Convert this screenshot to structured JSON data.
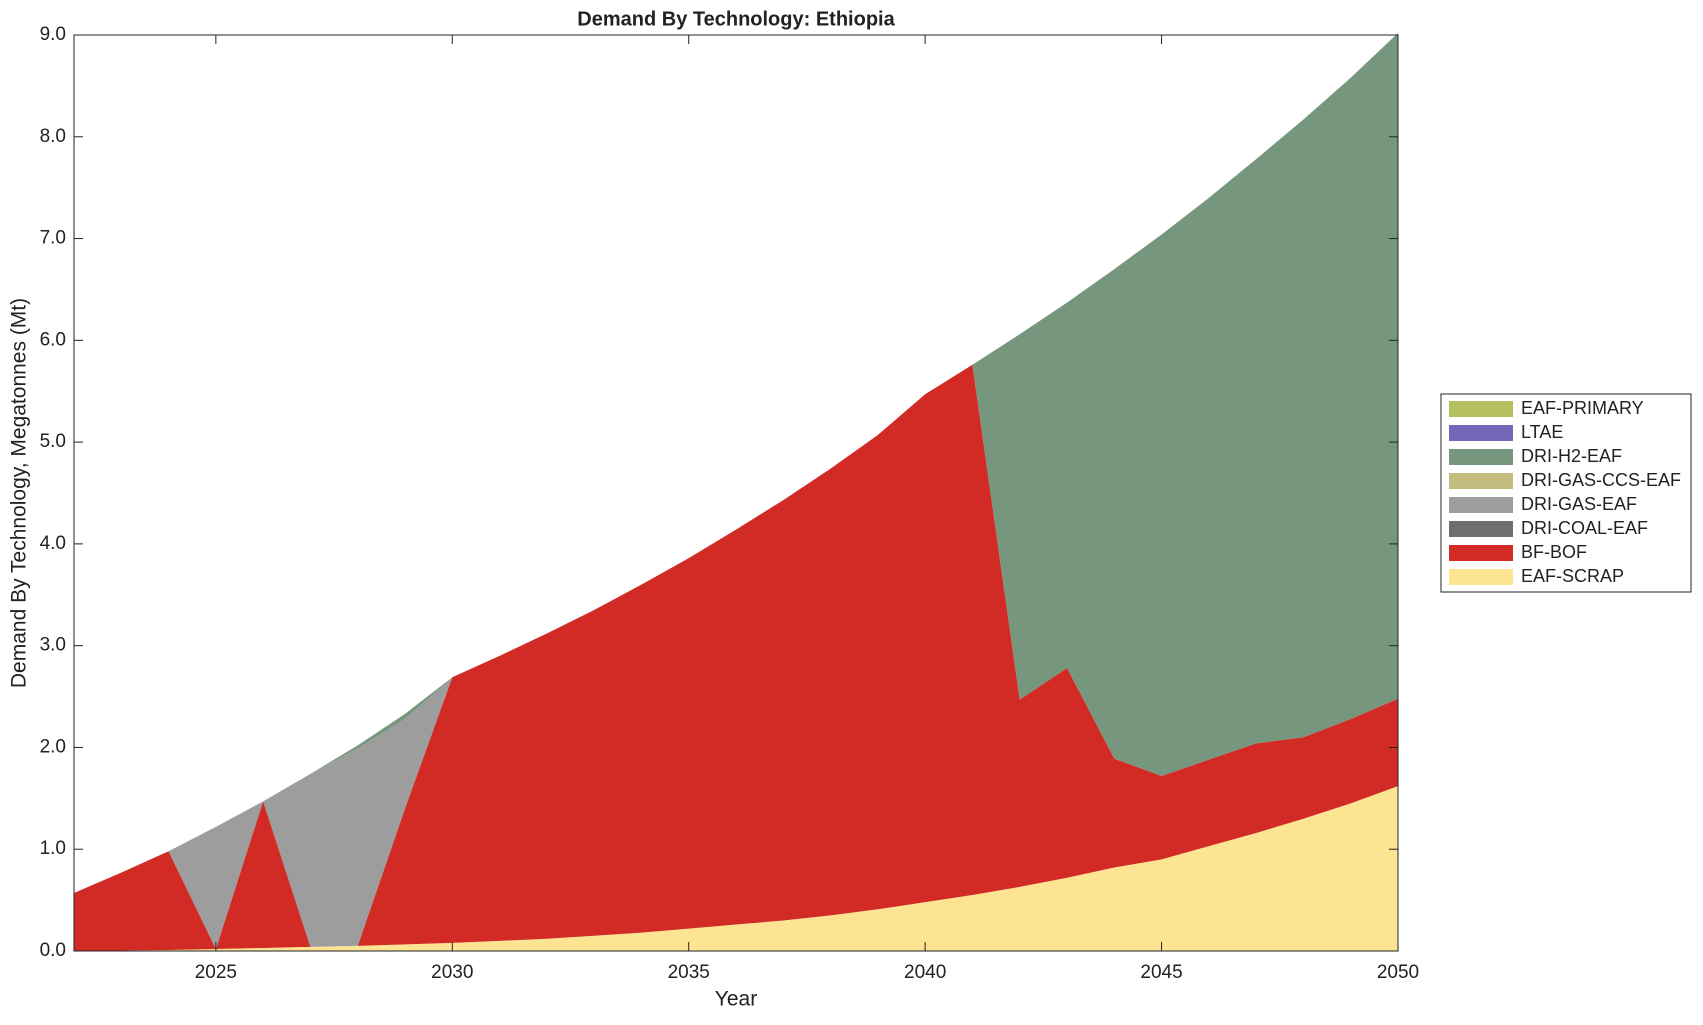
{
  "chart_data": {
    "type": "stacked_area",
    "title": "Demand By Technology: Ethiopia",
    "x_label": "Year",
    "y_label": "Demand By Technology, Megatonnes (Mt)",
    "x": [
      2022,
      2023,
      2024,
      2025,
      2026,
      2027,
      2028,
      2029,
      2030,
      2031,
      2032,
      2033,
      2034,
      2035,
      2036,
      2037,
      2038,
      2039,
      2040,
      2041,
      2042,
      2043,
      2044,
      2045,
      2046,
      2047,
      2048,
      2049,
      2050
    ],
    "series": [
      {
        "name": "EAF-PRIMARY",
        "color": "#b5bf5f",
        "values": [
          0,
          0,
          0,
          0,
          0,
          0,
          0,
          0,
          0,
          0,
          0,
          0,
          0,
          0,
          0,
          0,
          0,
          0,
          0,
          0,
          0,
          0,
          0,
          0,
          0,
          0,
          0,
          0,
          0
        ]
      },
      {
        "name": "LTAE",
        "color": "#7466b8",
        "values": [
          0,
          0,
          0,
          0,
          0,
          0,
          0,
          0,
          0,
          0,
          0,
          0,
          0,
          0,
          0,
          0,
          0,
          0,
          0,
          0,
          0,
          0,
          0,
          0,
          0,
          0,
          0,
          0,
          0
        ]
      },
      {
        "name": "DRI-H2-EAF",
        "color": "#76977d",
        "values": [
          0,
          0,
          0,
          0,
          0,
          0,
          0.03,
          0.05,
          0,
          0,
          0,
          0,
          0,
          0,
          0,
          0,
          0,
          0,
          0,
          0,
          3.59,
          3.59,
          4.81,
          5.32,
          5.52,
          5.74,
          6.07,
          6.3,
          6.54
        ]
      },
      {
        "name": "DRI-GAS-CCS-EAF",
        "color": "#c4bb7e",
        "values": [
          0,
          0,
          0,
          0,
          0,
          0,
          0,
          0,
          0,
          0,
          0,
          0,
          0,
          0,
          0,
          0,
          0,
          0,
          0,
          0,
          0,
          0,
          0,
          0,
          0,
          0,
          0,
          0,
          0
        ]
      },
      {
        "name": "DRI-GAS-EAF",
        "color": "#9d9d9d",
        "values": [
          0,
          0,
          0,
          1.2,
          0,
          1.7,
          1.94,
          0.88,
          0,
          0,
          0,
          0,
          0,
          0,
          0,
          0,
          0,
          0,
          0,
          0,
          0,
          0,
          0,
          0,
          0,
          0,
          0,
          0,
          0
        ]
      },
      {
        "name": "DRI-COAL-EAF",
        "color": "#6e6e6e",
        "values": [
          0,
          0,
          0,
          0,
          0,
          0,
          0,
          0,
          0,
          0,
          0,
          0,
          0,
          0,
          0,
          0,
          0,
          0,
          0,
          0,
          0,
          0,
          0,
          0,
          0,
          0,
          0,
          0,
          0
        ]
      },
      {
        "name": "BF-BOF",
        "color": "#d22b25",
        "values": [
          0.57,
          0.765,
          0.97,
          0,
          1.44,
          0,
          0,
          1.335,
          2.61,
          2.8,
          3.0,
          3.2,
          3.42,
          3.64,
          3.88,
          4.13,
          4.39,
          4.66,
          4.99,
          5.21,
          1.84,
          2.06,
          1.07,
          0.82,
          0.85,
          0.88,
          0.8,
          0.83,
          0.86
        ]
      },
      {
        "name": "EAF-SCRAP",
        "color": "#fde493",
        "values": [
          0,
          0.005,
          0.01,
          0.02,
          0.03,
          0.04,
          0.05,
          0.065,
          0.08,
          0.1,
          0.12,
          0.15,
          0.18,
          0.22,
          0.26,
          0.3,
          0.35,
          0.41,
          0.48,
          0.55,
          0.63,
          0.72,
          0.82,
          0.9,
          1.03,
          1.16,
          1.3,
          1.45,
          1.62
        ]
      }
    ],
    "xlim": [
      2022,
      2050
    ],
    "xticks": [
      2025,
      2030,
      2035,
      2040,
      2045,
      2050
    ],
    "ylim": [
      0,
      9
    ],
    "yticks": [
      {
        "value": 0,
        "label": "0.0"
      },
      {
        "value": 1,
        "label": "1.0"
      },
      {
        "value": 2,
        "label": "2.0"
      },
      {
        "value": 3,
        "label": "3.0"
      },
      {
        "value": 4,
        "label": "4.0"
      },
      {
        "value": 5,
        "label": "5.0"
      },
      {
        "value": 6,
        "label": "6.0"
      },
      {
        "value": 7,
        "label": "7.0"
      },
      {
        "value": 8,
        "label": "8.0"
      },
      {
        "value": 9,
        "label": "9.0"
      }
    ],
    "grid": false,
    "legend": "right"
  }
}
